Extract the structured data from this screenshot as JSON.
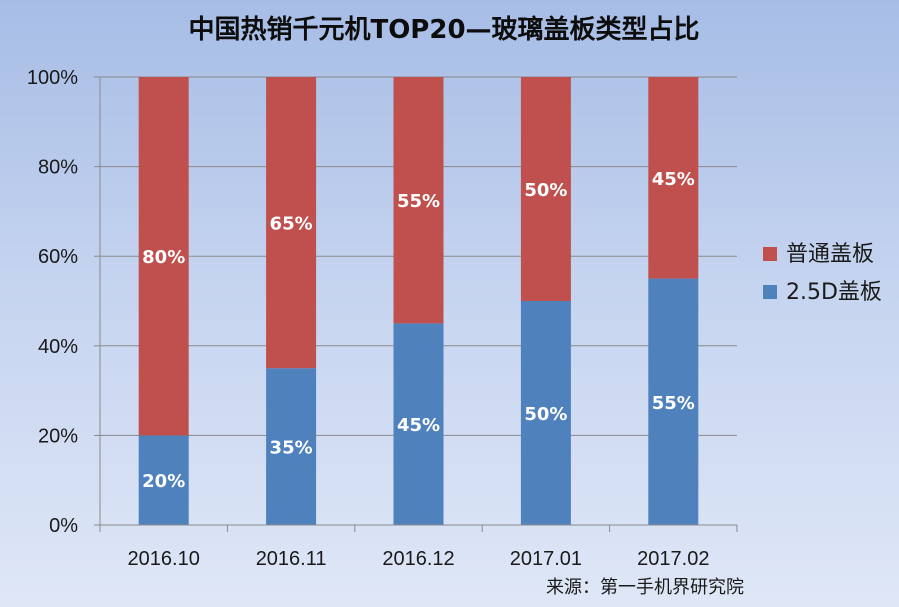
{
  "chart_data": {
    "type": "bar",
    "stacked": true,
    "title": "中国热销千元机TOP20—玻璃盖板类型占比",
    "categories": [
      "2016.10",
      "2016.11",
      "2016.12",
      "2017.01",
      "2017.02"
    ],
    "series": [
      {
        "name": "2.5D盖板",
        "color": "#4f81bd",
        "values": [
          20,
          35,
          45,
          50,
          55
        ]
      },
      {
        "name": "普通盖板",
        "color": "#c0504d",
        "values": [
          80,
          65,
          55,
          50,
          45
        ]
      }
    ],
    "value_labels": [
      [
        "20%",
        "35%",
        "45%",
        "50%",
        "55%"
      ],
      [
        "80%",
        "65%",
        "55%",
        "50%",
        "45%"
      ]
    ],
    "ylim": [
      0,
      100
    ],
    "yticks": [
      "0%",
      "20%",
      "40%",
      "60%",
      "80%",
      "100%"
    ],
    "grid": true,
    "legend_position": "right",
    "source": "来源：第一手机界研究院"
  }
}
